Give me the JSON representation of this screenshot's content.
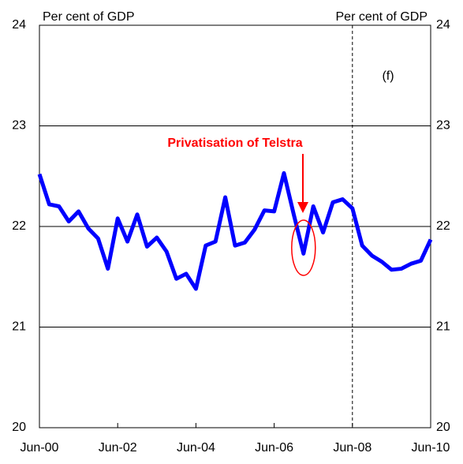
{
  "chart_data": {
    "type": "line",
    "y_label_left": "Per cent of GDP",
    "y_label_right": "Per cent of GDP",
    "annotation": "Privatisation of Telstra",
    "forecast_label": "(f)",
    "categories": [
      "Jun-00",
      null,
      null,
      null,
      null,
      null,
      null,
      null,
      "Jun-02",
      null,
      null,
      null,
      null,
      null,
      null,
      null,
      "Jun-04",
      null,
      null,
      null,
      null,
      null,
      null,
      null,
      "Jun-06",
      null,
      null,
      null,
      null,
      null,
      null,
      null,
      "Jun-08",
      null,
      null,
      null,
      null,
      null,
      null,
      null,
      "Jun-10"
    ],
    "series": [
      {
        "color": "#0000ff",
        "values": [
          22.52,
          22.22,
          22.2,
          22.05,
          22.15,
          21.98,
          21.88,
          21.58,
          22.08,
          21.85,
          22.12,
          21.8,
          21.89,
          21.75,
          21.48,
          21.53,
          21.38,
          21.81,
          21.85,
          22.29,
          21.81,
          21.84,
          21.97,
          22.16,
          22.15,
          22.53,
          22.12,
          21.73,
          22.2,
          21.94,
          22.24,
          22.27,
          22.18,
          21.81,
          21.71,
          21.65,
          21.57,
          21.58,
          21.63,
          21.66,
          21.87
        ]
      }
    ],
    "ylim": [
      20,
      24
    ],
    "yticks": [
      20,
      21,
      22,
      23,
      24
    ],
    "y2lim": [
      20,
      24
    ],
    "y2ticks": [
      20,
      21,
      22,
      23,
      24
    ],
    "grid": true
  }
}
